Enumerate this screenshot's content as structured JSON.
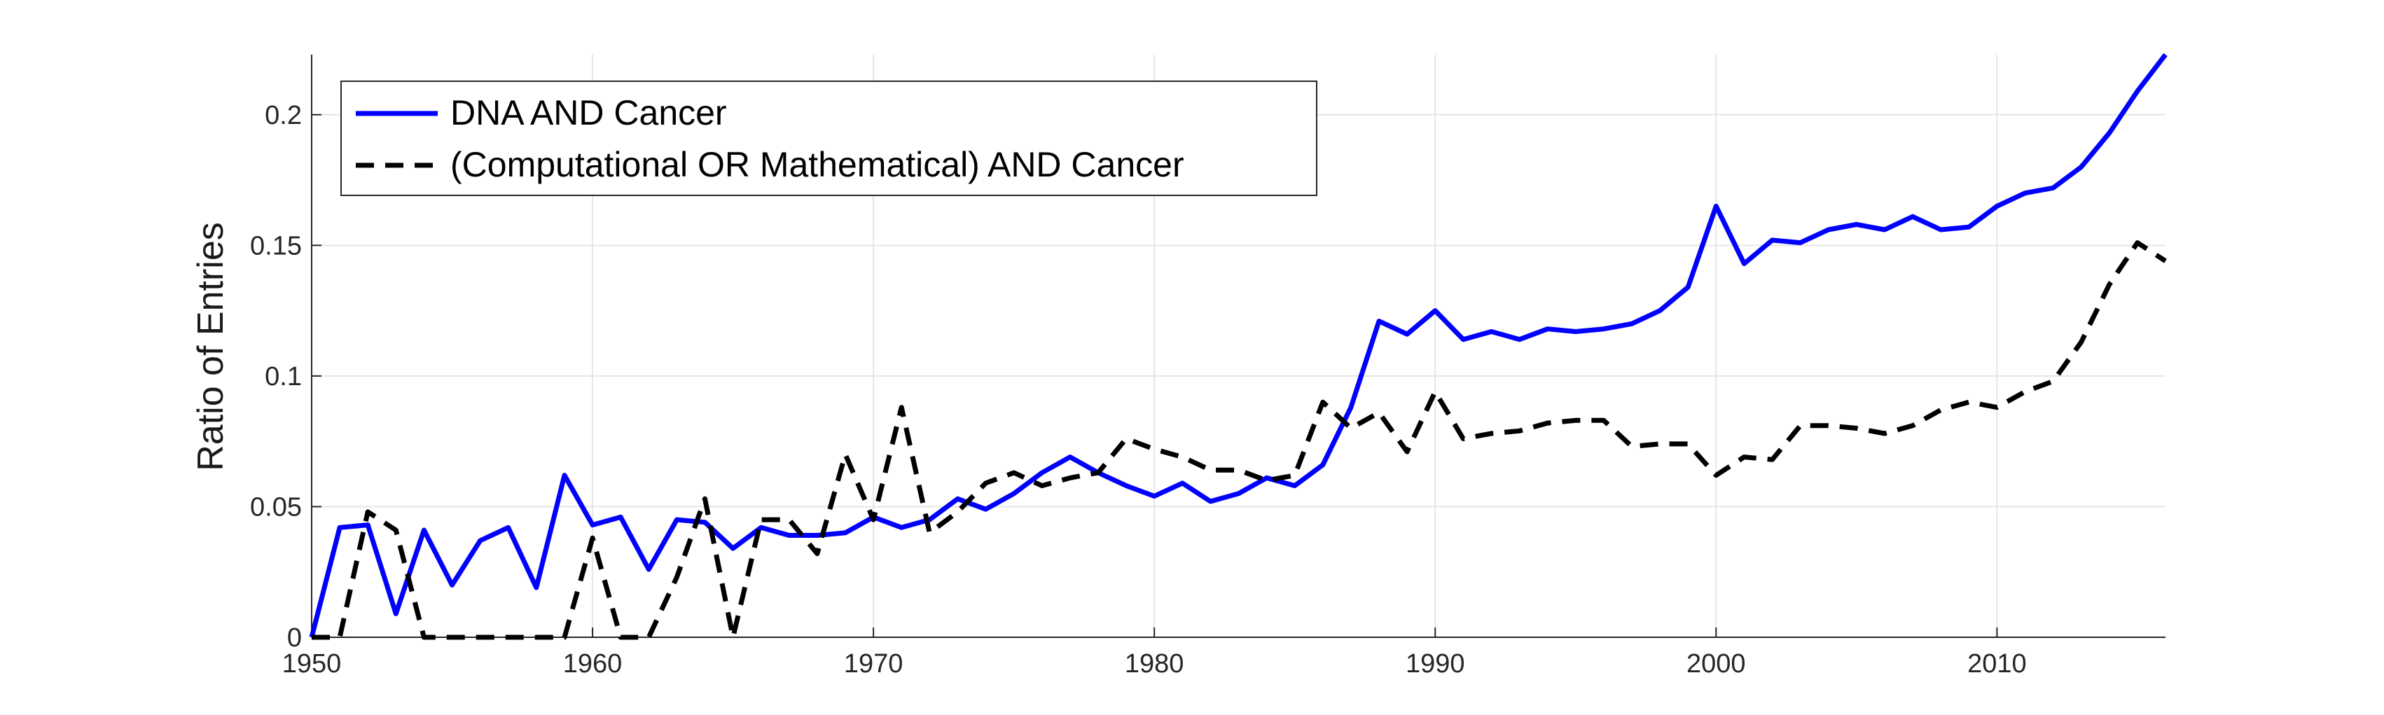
{
  "chart_data": {
    "type": "line",
    "xlabel": "",
    "ylabel": "Ratio of  Entries",
    "xlim": [
      1950,
      2016
    ],
    "ylim": [
      0,
      0.223
    ],
    "x_ticks": [
      1950,
      1960,
      1970,
      1980,
      1990,
      2000,
      2010
    ],
    "x_tick_labels": [
      "1950",
      "1960",
      "1970",
      "1980",
      "1990",
      "2000",
      "2010"
    ],
    "y_ticks": [
      0,
      0.05,
      0.1,
      0.15,
      0.2
    ],
    "y_tick_labels": [
      "0",
      "0.05",
      "0.1",
      "0.15",
      "0.2"
    ],
    "grid": true,
    "legend_position": "top-left",
    "x": [
      1950,
      1951,
      1952,
      1953,
      1954,
      1955,
      1956,
      1957,
      1958,
      1959,
      1960,
      1961,
      1962,
      1963,
      1964,
      1965,
      1966,
      1967,
      1968,
      1969,
      1970,
      1971,
      1972,
      1973,
      1974,
      1975,
      1976,
      1977,
      1978,
      1979,
      1980,
      1981,
      1982,
      1983,
      1984,
      1985,
      1986,
      1987,
      1988,
      1989,
      1990,
      1991,
      1992,
      1993,
      1994,
      1995,
      1996,
      1997,
      1998,
      1999,
      2000,
      2001,
      2002,
      2003,
      2004,
      2005,
      2006,
      2007,
      2008,
      2009,
      2010,
      2011,
      2012,
      2013,
      2014,
      2015,
      2016
    ],
    "series": [
      {
        "name": "DNA AND Cancer",
        "color": "#0000ff",
        "style": "solid",
        "values": [
          0,
          0.042,
          0.043,
          0.009,
          0.041,
          0.02,
          0.037,
          0.042,
          0.019,
          0.062,
          0.043,
          0.046,
          0.026,
          0.045,
          0.044,
          0.034,
          0.042,
          0.039,
          0.039,
          0.04,
          0.046,
          0.042,
          0.045,
          0.053,
          0.049,
          0.055,
          0.063,
          0.069,
          0.063,
          0.058,
          0.054,
          0.059,
          0.052,
          0.055,
          0.061,
          0.058,
          0.066,
          0.088,
          0.121,
          0.116,
          0.125,
          0.114,
          0.117,
          0.114,
          0.118,
          0.117,
          0.118,
          0.12,
          0.125,
          0.134,
          0.165,
          0.143,
          0.152,
          0.151,
          0.156,
          0.158,
          0.156,
          0.161,
          0.156,
          0.157,
          0.165,
          0.17,
          0.172,
          0.18,
          0.193,
          0.209,
          0.223
        ]
      },
      {
        "name": "(Computational OR Mathematical) AND Cancer",
        "color": "#000000",
        "style": "dashed",
        "values": [
          0,
          0,
          0.048,
          0.041,
          0,
          0,
          0,
          0,
          0,
          0,
          0.038,
          0,
          0,
          0.023,
          0.053,
          0,
          0.045,
          0.045,
          0.032,
          0.07,
          0.045,
          0.088,
          0.04,
          0.048,
          0.059,
          0.063,
          0.058,
          0.061,
          0.063,
          0.076,
          0.072,
          0.069,
          0.064,
          0.064,
          0.06,
          0.062,
          0.09,
          0.08,
          0.086,
          0.071,
          0.094,
          0.076,
          0.078,
          0.079,
          0.082,
          0.083,
          0.083,
          0.073,
          0.074,
          0.074,
          0.062,
          0.069,
          0.068,
          0.081,
          0.081,
          0.08,
          0.078,
          0.081,
          0.087,
          0.09,
          0.088,
          0.094,
          0.098,
          0.113,
          0.135,
          0.151,
          0.144
        ]
      }
    ]
  }
}
